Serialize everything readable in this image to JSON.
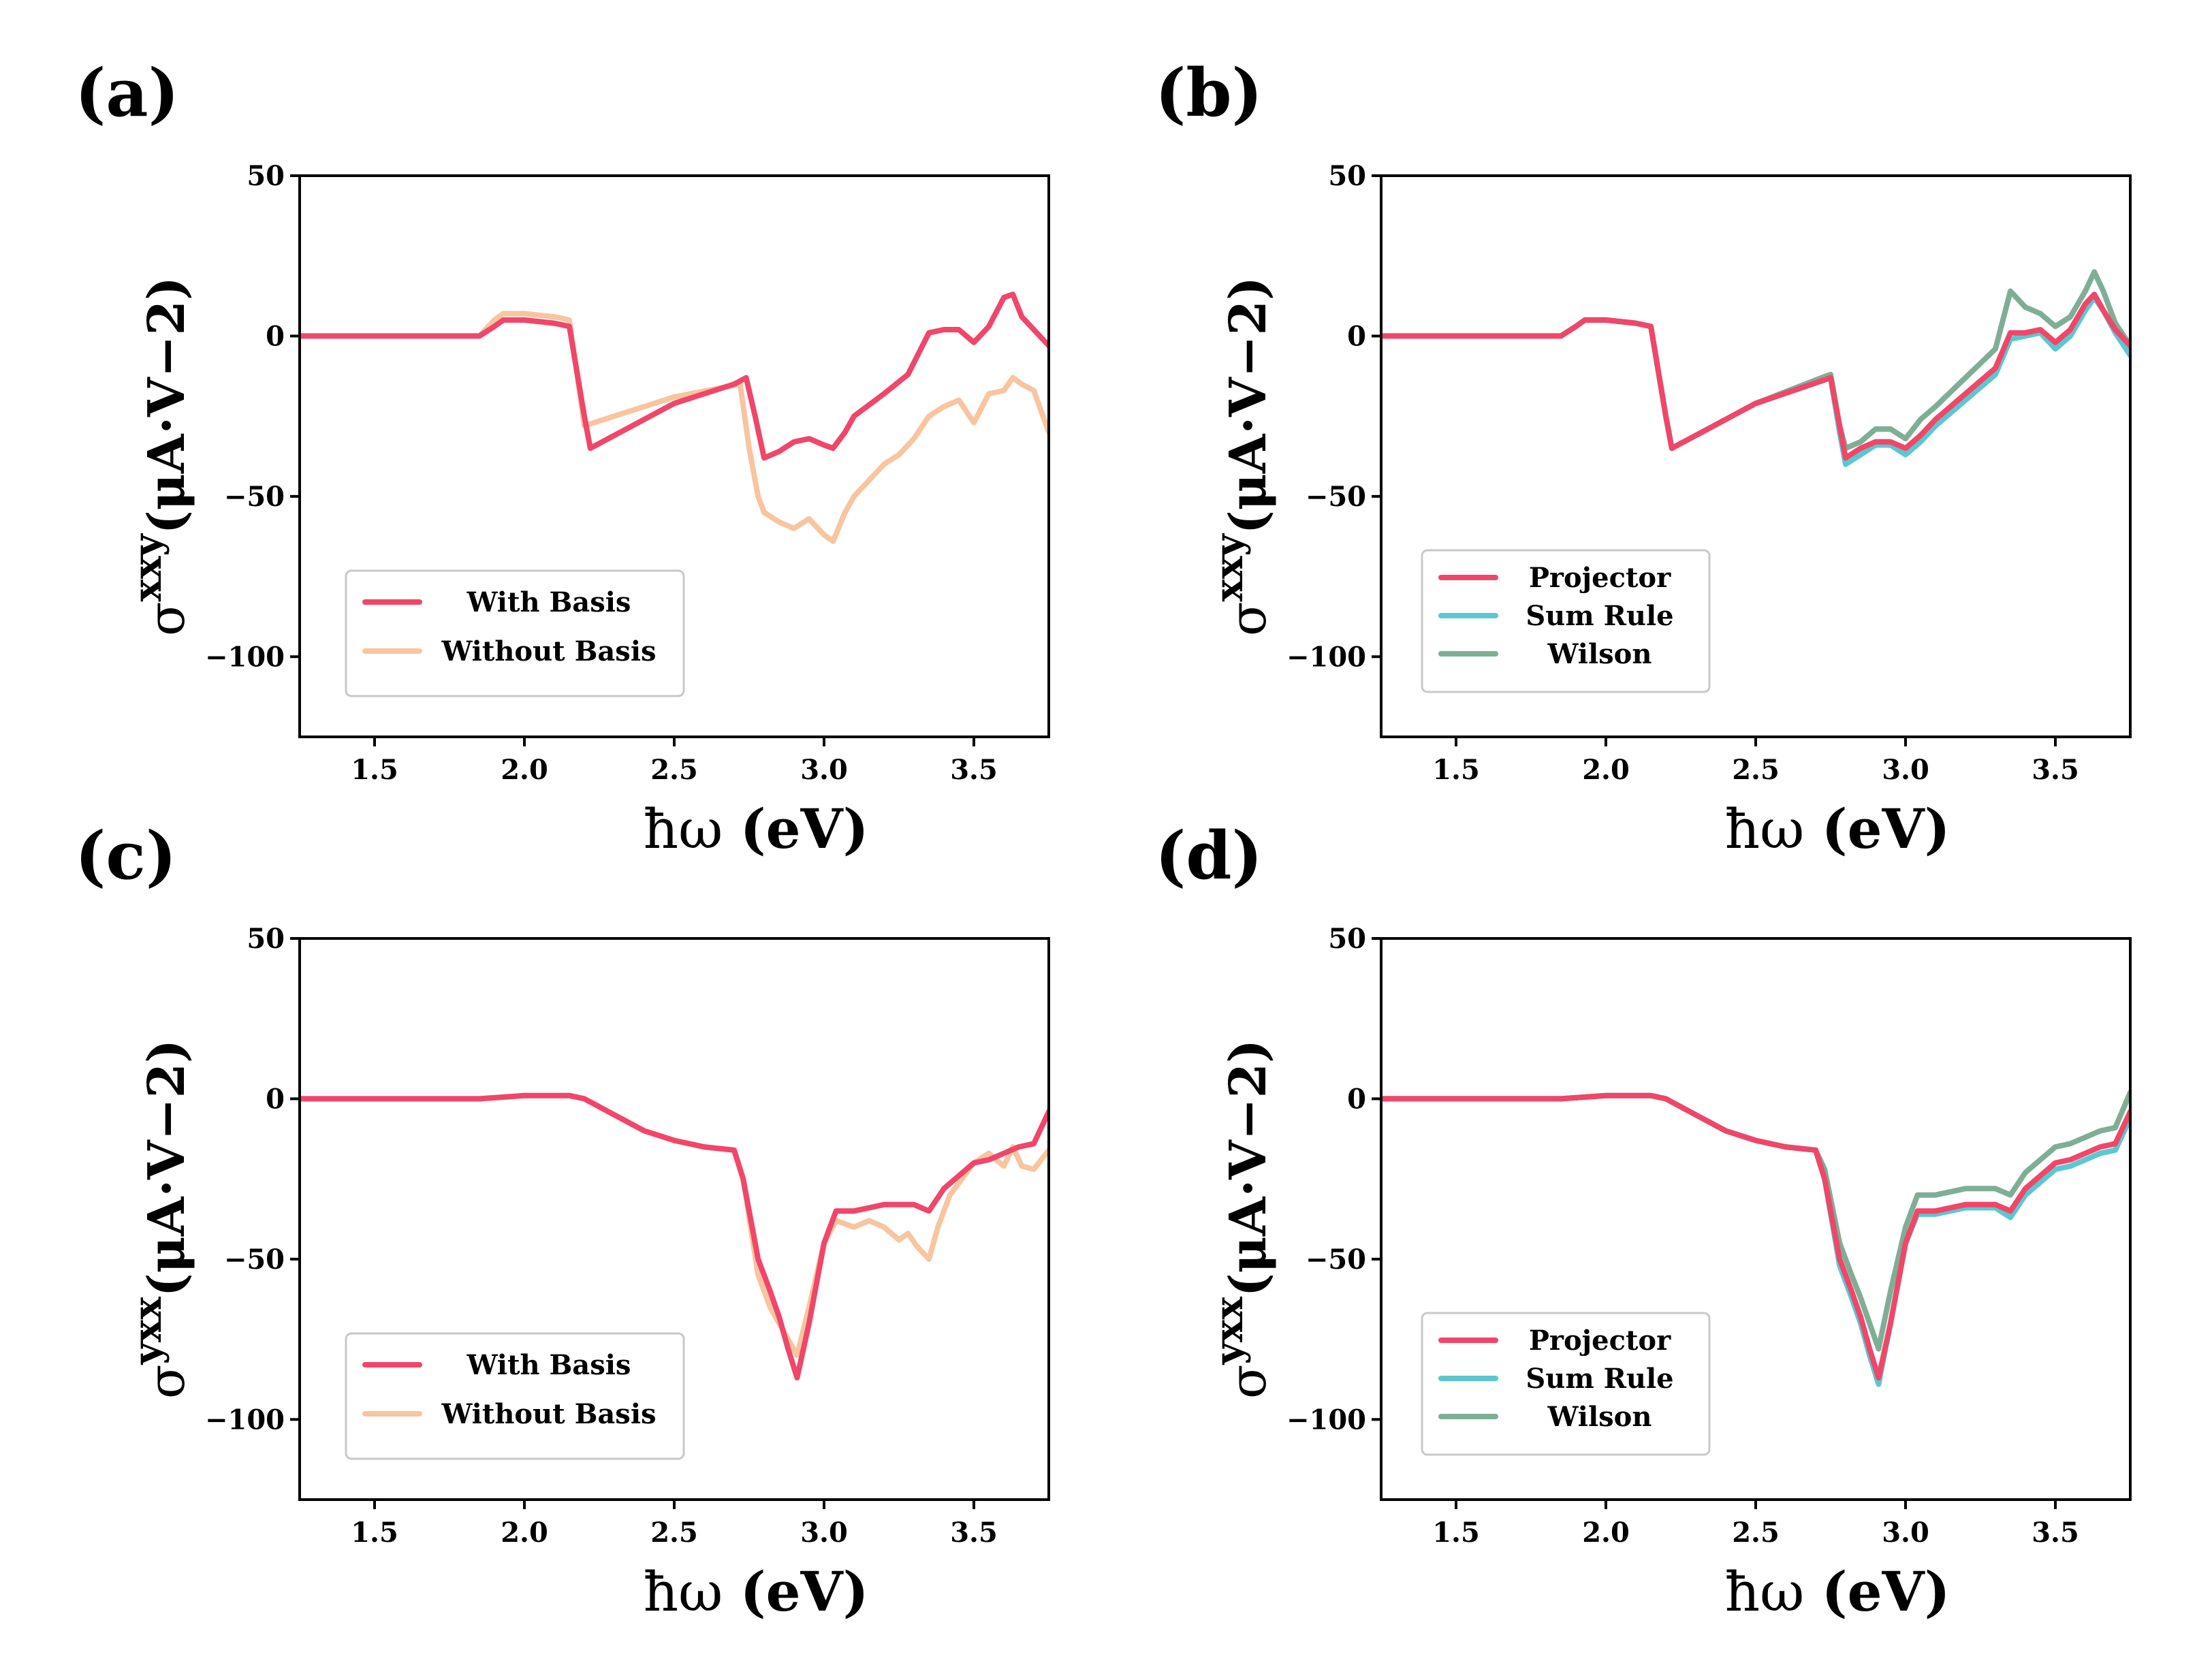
{
  "chart_data": [
    {
      "panel": "(a)",
      "type": "line",
      "xlabel": "ħω (eV)",
      "ylabel": {
        "sup": "xxy",
        "unit": "(μA·V−2)"
      },
      "xlim": [
        1.25,
        3.75
      ],
      "ylim": [
        -125,
        50
      ],
      "xticks": [
        1.5,
        2.0,
        2.5,
        3.0,
        3.5
      ],
      "xtick_labels": [
        "1.5",
        "2.0",
        "2.5",
        "3.0",
        "3.5"
      ],
      "yticks": [
        50,
        0,
        -50,
        -100
      ],
      "ytick_labels": [
        "50",
        "0",
        "−50",
        "−100"
      ],
      "legend": {
        "position": "lower-left",
        "entries": [
          "With Basis",
          "Without Basis"
        ]
      },
      "series": [
        {
          "name": "Without Basis",
          "color": "#f7c5a0",
          "x": [
            1.25,
            1.85,
            1.9,
            1.93,
            2.0,
            2.1,
            2.15,
            2.2,
            2.3,
            2.5,
            2.72,
            2.75,
            2.78,
            2.8,
            2.85,
            2.9,
            2.95,
            3.0,
            3.03,
            3.07,
            3.1,
            3.15,
            3.2,
            3.25,
            3.3,
            3.35,
            3.4,
            3.45,
            3.5,
            3.55,
            3.6,
            3.63,
            3.66,
            3.7,
            3.75
          ],
          "y": [
            0,
            0,
            5,
            7,
            7,
            6,
            5,
            -28,
            -25,
            -19,
            -15,
            -35,
            -50,
            -55,
            -58,
            -60,
            -57,
            -62,
            -64,
            -55,
            -50,
            -45,
            -40,
            -37,
            -32,
            -25,
            -22,
            -20,
            -27,
            -18,
            -17,
            -13,
            -15,
            -17,
            -30
          ]
        },
        {
          "name": "With Basis",
          "color": "#f0466a",
          "x": [
            1.25,
            1.85,
            1.9,
            1.93,
            2.0,
            2.1,
            2.15,
            2.2,
            2.22,
            2.3,
            2.5,
            2.7,
            2.74,
            2.77,
            2.8,
            2.85,
            2.9,
            2.95,
            3.0,
            3.03,
            3.07,
            3.1,
            3.2,
            3.28,
            3.35,
            3.4,
            3.45,
            3.5,
            3.55,
            3.6,
            3.63,
            3.66,
            3.7,
            3.75
          ],
          "y": [
            0,
            0,
            3,
            5,
            5,
            4,
            3,
            -25,
            -35,
            -31,
            -21,
            -15,
            -13,
            -25,
            -38,
            -36,
            -33,
            -32,
            -34,
            -35,
            -30,
            -25,
            -18,
            -12,
            1,
            2,
            2,
            -2,
            3,
            12,
            13,
            6,
            2,
            -3
          ]
        }
      ]
    },
    {
      "panel": "(b)",
      "type": "line",
      "xlabel": "ħω (eV)",
      "ylabel": {
        "sup": "xxy",
        "unit": "(μA·V−2)"
      },
      "xlim": [
        1.25,
        3.75
      ],
      "ylim": [
        -125,
        50
      ],
      "xticks": [
        1.5,
        2.0,
        2.5,
        3.0,
        3.5
      ],
      "xtick_labels": [
        "1.5",
        "2.0",
        "2.5",
        "3.0",
        "3.5"
      ],
      "yticks": [
        50,
        0,
        -50,
        -100
      ],
      "ytick_labels": [
        "50",
        "0",
        "−50",
        "−100"
      ],
      "legend": {
        "position": "lower-left",
        "entries": [
          "Projector",
          "Sum Rule",
          "Wilson"
        ]
      },
      "series": [
        {
          "name": "Sum Rule",
          "color": "#5bc8d0",
          "x": [
            1.25,
            1.85,
            1.9,
            1.93,
            2.0,
            2.1,
            2.15,
            2.2,
            2.22,
            2.3,
            2.5,
            2.72,
            2.75,
            2.78,
            2.8,
            2.85,
            2.9,
            2.95,
            3.0,
            3.05,
            3.1,
            3.2,
            3.3,
            3.35,
            3.4,
            3.45,
            3.5,
            3.55,
            3.6,
            3.63,
            3.66,
            3.7,
            3.75
          ],
          "y": [
            0,
            0,
            3,
            5,
            5,
            4,
            3,
            -25,
            -35,
            -31,
            -21,
            -14,
            -13,
            -30,
            -40,
            -37,
            -34,
            -34,
            -37,
            -33,
            -28,
            -20,
            -12,
            -1,
            0,
            1,
            -4,
            0,
            8,
            12,
            8,
            1,
            -6
          ]
        },
        {
          "name": "Wilson",
          "color": "#7fae96",
          "x": [
            1.25,
            1.85,
            1.9,
            1.93,
            2.0,
            2.1,
            2.15,
            2.2,
            2.22,
            2.3,
            2.5,
            2.72,
            2.75,
            2.78,
            2.8,
            2.85,
            2.9,
            2.95,
            3.0,
            3.05,
            3.1,
            3.2,
            3.3,
            3.35,
            3.4,
            3.45,
            3.5,
            3.55,
            3.6,
            3.63,
            3.66,
            3.7,
            3.75
          ],
          "y": [
            0,
            0,
            3,
            5,
            5,
            4,
            3,
            -25,
            -35,
            -31,
            -21,
            -13,
            -12,
            -28,
            -35,
            -33,
            -29,
            -29,
            -32,
            -26,
            -22,
            -13,
            -4,
            14,
            9,
            7,
            3,
            6,
            14,
            20,
            14,
            4,
            -3
          ]
        },
        {
          "name": "Projector",
          "color": "#f0466a",
          "x": [
            1.25,
            1.85,
            1.9,
            1.93,
            2.0,
            2.1,
            2.15,
            2.2,
            2.22,
            2.3,
            2.5,
            2.72,
            2.75,
            2.78,
            2.8,
            2.85,
            2.9,
            2.95,
            3.0,
            3.05,
            3.1,
            3.2,
            3.3,
            3.35,
            3.4,
            3.45,
            3.5,
            3.55,
            3.6,
            3.63,
            3.66,
            3.7,
            3.75
          ],
          "y": [
            0,
            0,
            3,
            5,
            5,
            4,
            3,
            -25,
            -35,
            -31,
            -21,
            -14,
            -13,
            -28,
            -38,
            -35,
            -33,
            -33,
            -35,
            -31,
            -26,
            -18,
            -10,
            1,
            1,
            2,
            -2,
            2,
            10,
            13,
            8,
            2,
            -3
          ]
        }
      ]
    },
    {
      "panel": "(c)",
      "type": "line",
      "xlabel": "ħω (eV)",
      "ylabel": {
        "sup": "yxx",
        "unit": "(μA·V−2)"
      },
      "xlim": [
        1.25,
        3.75
      ],
      "ylim": [
        -125,
        50
      ],
      "xticks": [
        1.5,
        2.0,
        2.5,
        3.0,
        3.5
      ],
      "xtick_labels": [
        "1.5",
        "2.0",
        "2.5",
        "3.0",
        "3.5"
      ],
      "yticks": [
        50,
        0,
        -50,
        -100
      ],
      "ytick_labels": [
        "50",
        "0",
        "−50",
        "−100"
      ],
      "legend": {
        "position": "lower-left",
        "entries": [
          "With Basis",
          "Without Basis"
        ]
      },
      "series": [
        {
          "name": "Without Basis",
          "color": "#f7c5a0",
          "x": [
            1.25,
            1.85,
            2.0,
            2.15,
            2.2,
            2.3,
            2.4,
            2.5,
            2.6,
            2.7,
            2.73,
            2.78,
            2.82,
            2.85,
            2.88,
            2.91,
            2.95,
            3.0,
            3.04,
            3.1,
            3.15,
            3.2,
            3.25,
            3.28,
            3.31,
            3.35,
            3.38,
            3.42,
            3.46,
            3.5,
            3.55,
            3.6,
            3.63,
            3.66,
            3.7,
            3.75
          ],
          "y": [
            0,
            0,
            1,
            1,
            0,
            -5,
            -10,
            -13,
            -15,
            -16,
            -25,
            -55,
            -65,
            -70,
            -75,
            -80,
            -65,
            -45,
            -38,
            -40,
            -38,
            -40,
            -44,
            -42,
            -46,
            -50,
            -40,
            -30,
            -25,
            -20,
            -17,
            -21,
            -15,
            -21,
            -22,
            -16
          ]
        },
        {
          "name": "With Basis",
          "color": "#f0466a",
          "x": [
            1.25,
            1.85,
            2.0,
            2.15,
            2.2,
            2.3,
            2.4,
            2.5,
            2.6,
            2.7,
            2.73,
            2.78,
            2.82,
            2.85,
            2.88,
            2.91,
            2.95,
            3.0,
            3.04,
            3.1,
            3.2,
            3.3,
            3.35,
            3.4,
            3.45,
            3.5,
            3.55,
            3.6,
            3.65,
            3.7,
            3.75
          ],
          "y": [
            0,
            0,
            1,
            1,
            0,
            -5,
            -10,
            -13,
            -15,
            -16,
            -25,
            -50,
            -60,
            -68,
            -78,
            -87,
            -70,
            -45,
            -35,
            -35,
            -33,
            -33,
            -35,
            -28,
            -24,
            -20,
            -19,
            -17,
            -15,
            -14,
            -4
          ]
        }
      ]
    },
    {
      "panel": "(d)",
      "type": "line",
      "xlabel": "ħω (eV)",
      "ylabel": {
        "sup": "yxx",
        "unit": "(μA·V−2)"
      },
      "xlim": [
        1.25,
        3.75
      ],
      "ylim": [
        -125,
        50
      ],
      "xticks": [
        1.5,
        2.0,
        2.5,
        3.0,
        3.5
      ],
      "xtick_labels": [
        "1.5",
        "2.0",
        "2.5",
        "3.0",
        "3.5"
      ],
      "yticks": [
        50,
        0,
        -50,
        -100
      ],
      "ytick_labels": [
        "50",
        "0",
        "−50",
        "−100"
      ],
      "legend": {
        "position": "lower-left",
        "entries": [
          "Projector",
          "Sum Rule",
          "Wilson"
        ]
      },
      "series": [
        {
          "name": "Sum Rule",
          "color": "#5bc8d0",
          "x": [
            1.25,
            1.85,
            2.0,
            2.15,
            2.2,
            2.3,
            2.4,
            2.5,
            2.6,
            2.7,
            2.73,
            2.78,
            2.82,
            2.85,
            2.88,
            2.91,
            2.95,
            3.0,
            3.04,
            3.1,
            3.2,
            3.3,
            3.35,
            3.4,
            3.45,
            3.5,
            3.55,
            3.6,
            3.65,
            3.7,
            3.75
          ],
          "y": [
            0,
            0,
            1,
            1,
            0,
            -5,
            -10,
            -13,
            -15,
            -16,
            -25,
            -52,
            -62,
            -70,
            -80,
            -89,
            -70,
            -45,
            -36,
            -36,
            -34,
            -34,
            -37,
            -30,
            -26,
            -22,
            -21,
            -19,
            -17,
            -16,
            -6
          ]
        },
        {
          "name": "Wilson",
          "color": "#7fae96",
          "x": [
            1.25,
            1.85,
            2.0,
            2.15,
            2.2,
            2.3,
            2.4,
            2.5,
            2.6,
            2.7,
            2.73,
            2.78,
            2.82,
            2.85,
            2.88,
            2.91,
            2.95,
            3.0,
            3.04,
            3.1,
            3.2,
            3.3,
            3.35,
            3.4,
            3.45,
            3.5,
            3.55,
            3.6,
            3.65,
            3.7,
            3.75
          ],
          "y": [
            0,
            0,
            1,
            1,
            0,
            -5,
            -10,
            -13,
            -15,
            -16,
            -22,
            -45,
            -55,
            -62,
            -70,
            -78,
            -60,
            -40,
            -30,
            -30,
            -28,
            -28,
            -30,
            -23,
            -19,
            -15,
            -14,
            -12,
            -10,
            -9,
            2
          ]
        },
        {
          "name": "Projector",
          "color": "#f0466a",
          "x": [
            1.25,
            1.85,
            2.0,
            2.15,
            2.2,
            2.3,
            2.4,
            2.5,
            2.6,
            2.7,
            2.73,
            2.78,
            2.82,
            2.85,
            2.88,
            2.91,
            2.95,
            3.0,
            3.04,
            3.1,
            3.2,
            3.3,
            3.35,
            3.4,
            3.45,
            3.5,
            3.55,
            3.6,
            3.65,
            3.7,
            3.75
          ],
          "y": [
            0,
            0,
            1,
            1,
            0,
            -5,
            -10,
            -13,
            -15,
            -16,
            -25,
            -50,
            -60,
            -68,
            -78,
            -87,
            -70,
            -45,
            -35,
            -35,
            -33,
            -33,
            -35,
            -28,
            -24,
            -20,
            -19,
            -17,
            -15,
            -14,
            -4
          ]
        }
      ]
    }
  ]
}
